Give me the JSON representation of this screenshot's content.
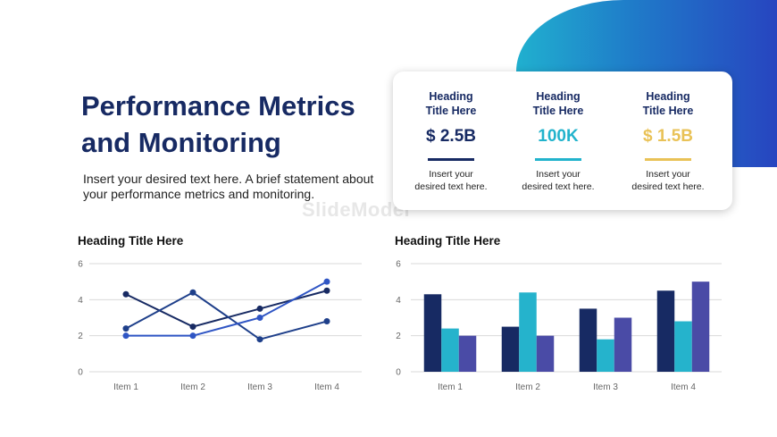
{
  "slide": {
    "title_line1": "Performance Metrics",
    "title_line2": "and Monitoring",
    "subtitle": "Insert your desired text here. A brief statement about your performance metrics and monitoring.",
    "watermark": "SlideModel"
  },
  "metrics": [
    {
      "heading_line1": "Heading",
      "heading_line2": "Title Here",
      "value": "$ 2.5B",
      "color": "#172a63",
      "desc_line1": "Insert your",
      "desc_line2": "desired text here."
    },
    {
      "heading_line1": "Heading",
      "heading_line2": "Title Here",
      "value": "100K",
      "color": "#22b3cc",
      "desc_line1": "Insert your",
      "desc_line2": "desired text here."
    },
    {
      "heading_line1": "Heading",
      "heading_line2": "Title Here",
      "value": "$ 1.5B",
      "color": "#e9c257",
      "desc_line1": "Insert your",
      "desc_line2": "desired text here."
    }
  ],
  "chart_data": [
    {
      "type": "line",
      "title": "Heading Title Here",
      "categories": [
        "Item 1",
        "Item 2",
        "Item 3",
        "Item 4"
      ],
      "ylim": [
        0,
        6
      ],
      "yticks": [
        0,
        2,
        4,
        6
      ],
      "grid": true,
      "series": [
        {
          "values": [
            4.3,
            2.5,
            3.5,
            4.5
          ],
          "color": "#172a63"
        },
        {
          "values": [
            2.4,
            4.4,
            1.8,
            2.8
          ],
          "color": "#1e3f8a"
        },
        {
          "values": [
            2.0,
            2.0,
            3.0,
            5.0
          ],
          "color": "#2f55c4"
        }
      ]
    },
    {
      "type": "bar",
      "title": "Heading Title Here",
      "categories": [
        "Item 1",
        "Item 2",
        "Item 3",
        "Item 4"
      ],
      "ylim": [
        0,
        6
      ],
      "yticks": [
        0,
        2,
        4,
        6
      ],
      "grid": true,
      "series": [
        {
          "values": [
            4.3,
            2.5,
            3.5,
            4.5
          ],
          "color": "#172a63"
        },
        {
          "values": [
            2.4,
            4.4,
            1.8,
            2.8
          ],
          "color": "#25b3cc"
        },
        {
          "values": [
            2.0,
            2.0,
            3.0,
            5.0
          ],
          "color": "#4a4ba6"
        }
      ]
    }
  ]
}
